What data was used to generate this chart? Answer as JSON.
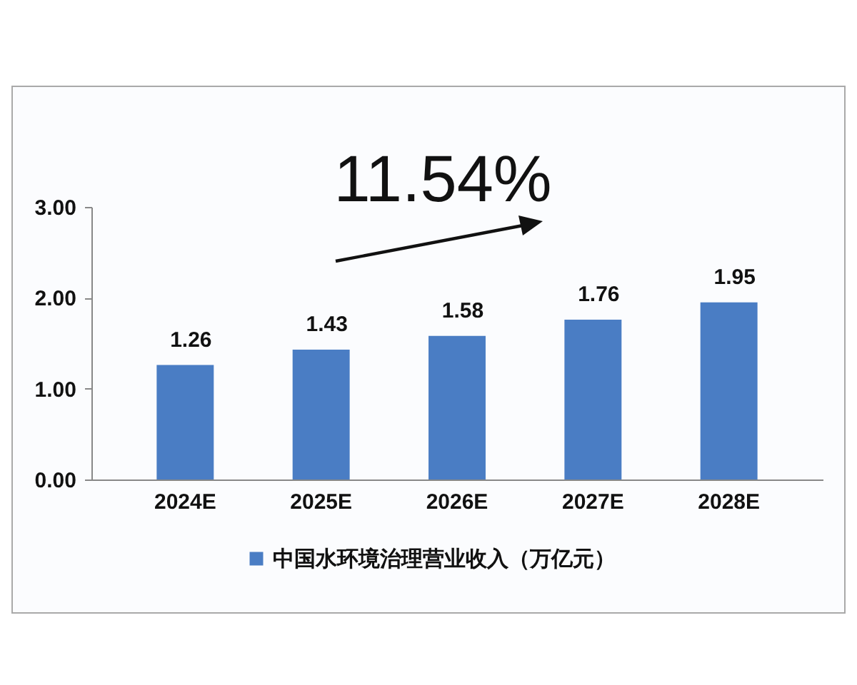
{
  "chart_data": {
    "type": "bar",
    "categories": [
      "2024E",
      "2025E",
      "2026E",
      "2027E",
      "2028E"
    ],
    "series": [
      {
        "name": "中国水环境治理营业收入（万亿元）",
        "color": "#4a7dc4",
        "values": [
          1.26,
          1.43,
          1.58,
          1.76,
          1.95
        ]
      }
    ],
    "ylim": [
      0,
      3
    ],
    "yticks": [
      {
        "value": 0,
        "label": "0.00"
      },
      {
        "value": 1,
        "label": "1.00"
      },
      {
        "value": 2,
        "label": "2.00"
      },
      {
        "value": 3,
        "label": "3.00"
      }
    ],
    "grid": false,
    "legend": "bottom",
    "data_labels": true,
    "annotations": [
      "11.54%"
    ]
  }
}
